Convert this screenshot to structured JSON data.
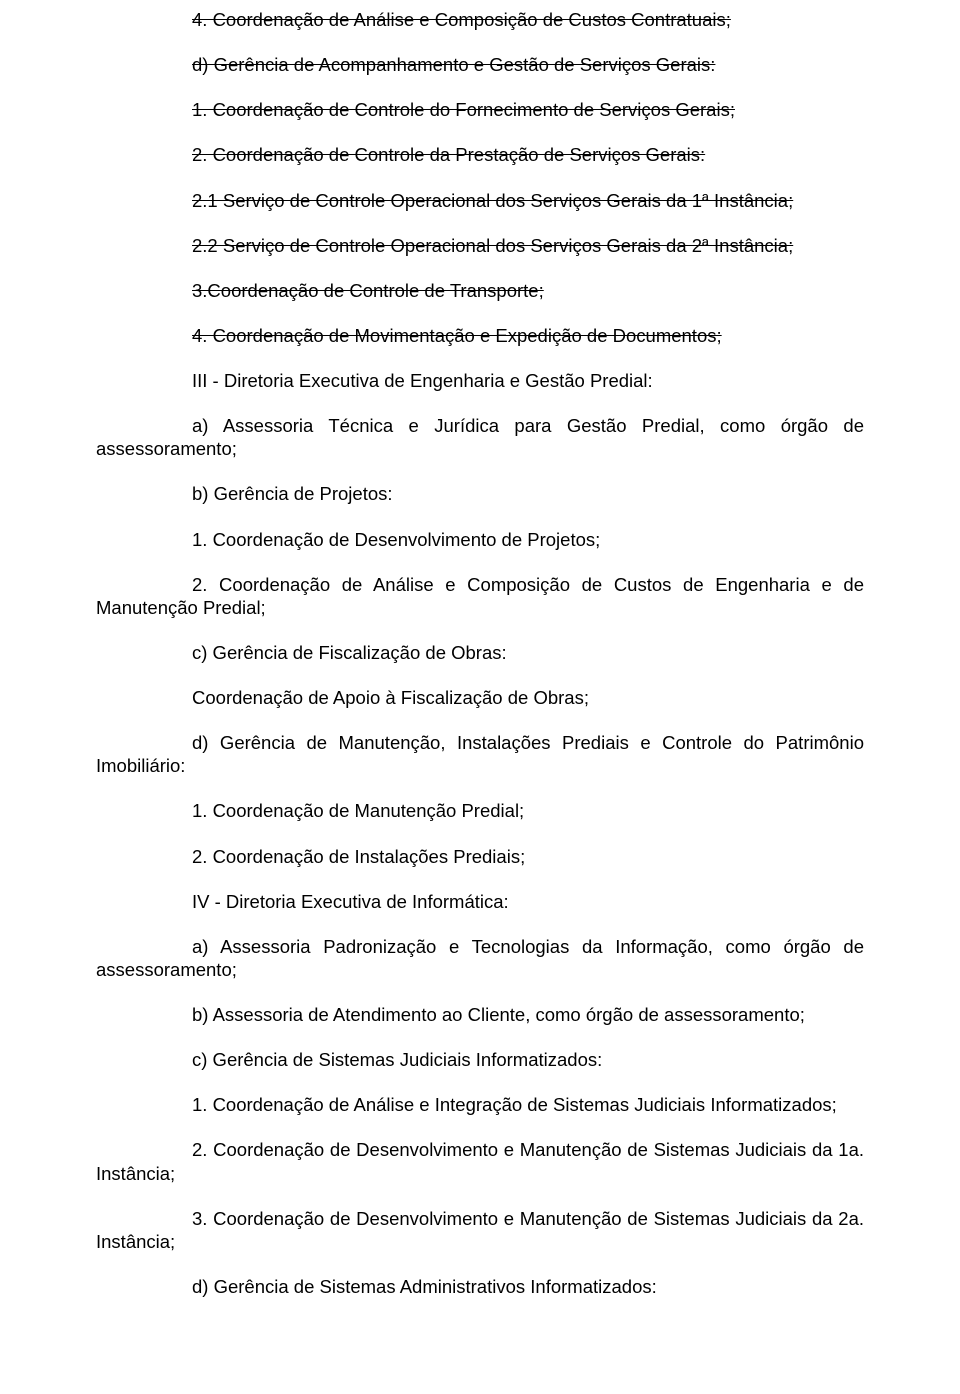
{
  "colors": {
    "text": "#000000",
    "background": "#ffffff"
  },
  "typography": {
    "font_family": "Arial",
    "font_size_pt": 14,
    "line_height": 1.25
  },
  "paragraphs": [
    {
      "id": "p1",
      "indent": true,
      "strike": true,
      "text": "4. Coordenação de Análise e Composição de Custos Contratuais;"
    },
    {
      "id": "p2",
      "indent": true,
      "strike": true,
      "text": "d) Gerência de Acompanhamento e Gestão de Serviços Gerais:"
    },
    {
      "id": "p3",
      "indent": true,
      "strike": true,
      "text": "1. Coordenação de Controle do Fornecimento de Serviços Gerais;"
    },
    {
      "id": "p4",
      "indent": true,
      "strike": true,
      "text": "2. Coordenação de Controle da Prestação de Serviços Gerais:"
    },
    {
      "id": "p5",
      "indent": true,
      "strike": true,
      "text": "2.1 Serviço de Controle Operacional dos Serviços Gerais da 1ª Instância;"
    },
    {
      "id": "p6",
      "indent": true,
      "strike": true,
      "text": "2.2 Serviço de Controle Operacional dos Serviços Gerais da 2ª Instância;"
    },
    {
      "id": "p7",
      "indent": true,
      "strike": true,
      "text": "3.Coordenação de Controle de Transporte;"
    },
    {
      "id": "p8",
      "indent": true,
      "strike": true,
      "text": "4. Coordenação de Movimentação e Expedição de Documentos;"
    },
    {
      "id": "p9",
      "indent": true,
      "strike": false,
      "text": "III - Diretoria Executiva de Engenharia e Gestão Predial:"
    },
    {
      "id": "p10",
      "indent": true,
      "strike": false,
      "text": "a) Assessoria Técnica e Jurídica para Gestão Predial, como órgão de assessoramento;"
    },
    {
      "id": "p11",
      "indent": true,
      "strike": false,
      "text": "b) Gerência de Projetos:"
    },
    {
      "id": "p12",
      "indent": true,
      "strike": false,
      "text": "1. Coordenação de Desenvolvimento de Projetos;"
    },
    {
      "id": "p13",
      "indent": true,
      "strike": false,
      "text": "2. Coordenação de Análise e Composição de Custos de Engenharia e de Manutenção Predial;"
    },
    {
      "id": "p14",
      "indent": true,
      "strike": false,
      "text": "c) Gerência de Fiscalização de Obras:"
    },
    {
      "id": "p15",
      "indent": true,
      "strike": false,
      "text": "Coordenação de Apoio à Fiscalização de Obras;"
    },
    {
      "id": "p16",
      "indent": true,
      "strike": false,
      "text": "d) Gerência de Manutenção, Instalações Prediais e Controle do Patrimônio Imobiliário:"
    },
    {
      "id": "p17",
      "indent": true,
      "strike": false,
      "text": "1. Coordenação de Manutenção Predial;"
    },
    {
      "id": "p18",
      "indent": true,
      "strike": false,
      "text": "2. Coordenação de Instalações Prediais;"
    },
    {
      "id": "p19",
      "indent": true,
      "strike": false,
      "text": "IV - Diretoria Executiva de Informática:"
    },
    {
      "id": "p20",
      "indent": true,
      "strike": false,
      "text": "a) Assessoria Padronização e Tecnologias da Informação,  como órgão de assessoramento;"
    },
    {
      "id": "p21",
      "indent": true,
      "strike": false,
      "text": "b) Assessoria de Atendimento ao Cliente, como órgão de assessoramento;"
    },
    {
      "id": "p22",
      "indent": true,
      "strike": false,
      "text": "c) Gerência de Sistemas Judiciais Informatizados:"
    },
    {
      "id": "p23",
      "indent": true,
      "strike": false,
      "text": "1. Coordenação de Análise e Integração de Sistemas Judiciais Informatizados;"
    },
    {
      "id": "p24",
      "indent": true,
      "strike": false,
      "text": "2. Coordenação de Desenvolvimento e Manutenção de Sistemas Judiciais da 1a. Instância;"
    },
    {
      "id": "p25",
      "indent": true,
      "strike": false,
      "text": "3. Coordenação de Desenvolvimento e Manutenção de Sistemas Judiciais da 2a. Instância;"
    },
    {
      "id": "p26",
      "indent": true,
      "strike": false,
      "text": "d) Gerência de Sistemas Administrativos Informatizados:"
    }
  ]
}
